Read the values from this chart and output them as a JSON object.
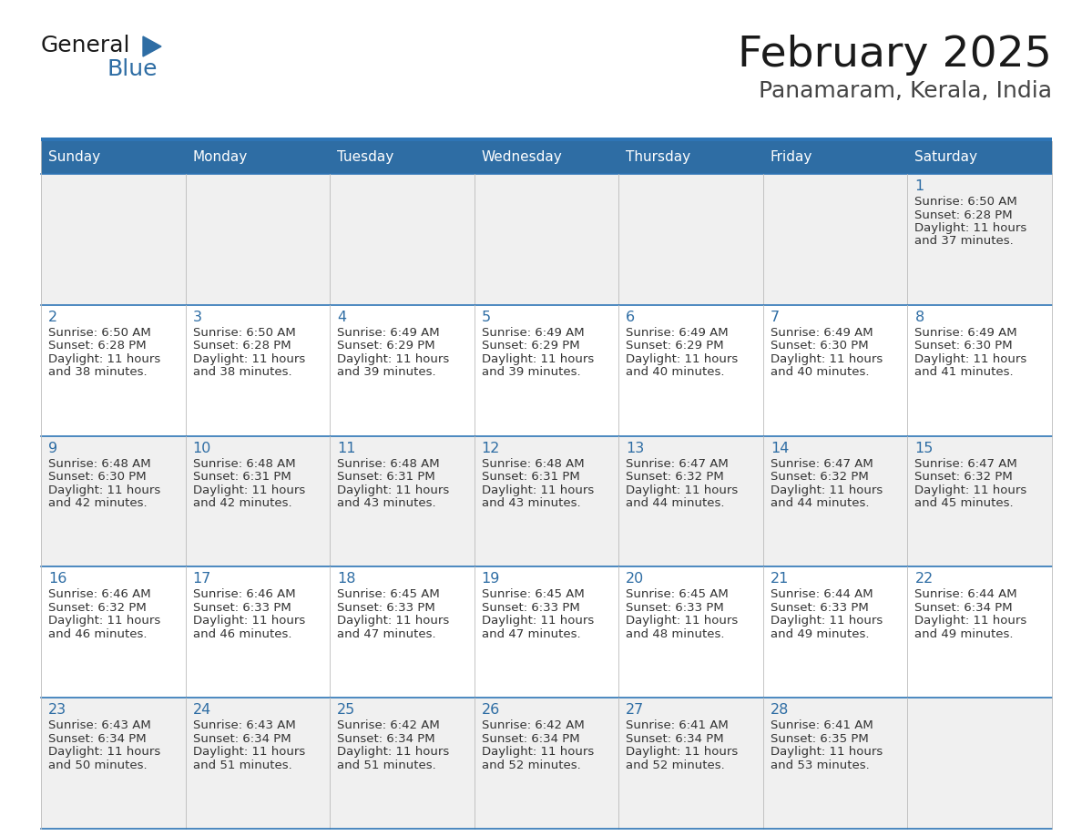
{
  "title": "February 2025",
  "subtitle": "Panamaram, Kerala, India",
  "header_bg": "#2E6DA4",
  "header_text": "#FFFFFF",
  "row_bg_odd": "#F0F0F0",
  "row_bg_even": "#FFFFFF",
  "border_color": "#2E75B6",
  "title_color": "#1a1a1a",
  "subtitle_color": "#444444",
  "day_number_color": "#2E6DA4",
  "cell_text_color": "#333333",
  "logo_text_color": "#1a1a1a",
  "logo_blue_color": "#2E6DA4",
  "days_of_week": [
    "Sunday",
    "Monday",
    "Tuesday",
    "Wednesday",
    "Thursday",
    "Friday",
    "Saturday"
  ],
  "calendar_data": [
    [
      null,
      null,
      null,
      null,
      null,
      null,
      {
        "day": 1,
        "sunrise": "6:50 AM",
        "sunset": "6:28 PM",
        "daylight": "11 hours",
        "daylight2": "and 37 minutes."
      }
    ],
    [
      {
        "day": 2,
        "sunrise": "6:50 AM",
        "sunset": "6:28 PM",
        "daylight": "11 hours",
        "daylight2": "and 38 minutes."
      },
      {
        "day": 3,
        "sunrise": "6:50 AM",
        "sunset": "6:28 PM",
        "daylight": "11 hours",
        "daylight2": "and 38 minutes."
      },
      {
        "day": 4,
        "sunrise": "6:49 AM",
        "sunset": "6:29 PM",
        "daylight": "11 hours",
        "daylight2": "and 39 minutes."
      },
      {
        "day": 5,
        "sunrise": "6:49 AM",
        "sunset": "6:29 PM",
        "daylight": "11 hours",
        "daylight2": "and 39 minutes."
      },
      {
        "day": 6,
        "sunrise": "6:49 AM",
        "sunset": "6:29 PM",
        "daylight": "11 hours",
        "daylight2": "and 40 minutes."
      },
      {
        "day": 7,
        "sunrise": "6:49 AM",
        "sunset": "6:30 PM",
        "daylight": "11 hours",
        "daylight2": "and 40 minutes."
      },
      {
        "day": 8,
        "sunrise": "6:49 AM",
        "sunset": "6:30 PM",
        "daylight": "11 hours",
        "daylight2": "and 41 minutes."
      }
    ],
    [
      {
        "day": 9,
        "sunrise": "6:48 AM",
        "sunset": "6:30 PM",
        "daylight": "11 hours",
        "daylight2": "and 42 minutes."
      },
      {
        "day": 10,
        "sunrise": "6:48 AM",
        "sunset": "6:31 PM",
        "daylight": "11 hours",
        "daylight2": "and 42 minutes."
      },
      {
        "day": 11,
        "sunrise": "6:48 AM",
        "sunset": "6:31 PM",
        "daylight": "11 hours",
        "daylight2": "and 43 minutes."
      },
      {
        "day": 12,
        "sunrise": "6:48 AM",
        "sunset": "6:31 PM",
        "daylight": "11 hours",
        "daylight2": "and 43 minutes."
      },
      {
        "day": 13,
        "sunrise": "6:47 AM",
        "sunset": "6:32 PM",
        "daylight": "11 hours",
        "daylight2": "and 44 minutes."
      },
      {
        "day": 14,
        "sunrise": "6:47 AM",
        "sunset": "6:32 PM",
        "daylight": "11 hours",
        "daylight2": "and 44 minutes."
      },
      {
        "day": 15,
        "sunrise": "6:47 AM",
        "sunset": "6:32 PM",
        "daylight": "11 hours",
        "daylight2": "and 45 minutes."
      }
    ],
    [
      {
        "day": 16,
        "sunrise": "6:46 AM",
        "sunset": "6:32 PM",
        "daylight": "11 hours",
        "daylight2": "and 46 minutes."
      },
      {
        "day": 17,
        "sunrise": "6:46 AM",
        "sunset": "6:33 PM",
        "daylight": "11 hours",
        "daylight2": "and 46 minutes."
      },
      {
        "day": 18,
        "sunrise": "6:45 AM",
        "sunset": "6:33 PM",
        "daylight": "11 hours",
        "daylight2": "and 47 minutes."
      },
      {
        "day": 19,
        "sunrise": "6:45 AM",
        "sunset": "6:33 PM",
        "daylight": "11 hours",
        "daylight2": "and 47 minutes."
      },
      {
        "day": 20,
        "sunrise": "6:45 AM",
        "sunset": "6:33 PM",
        "daylight": "11 hours",
        "daylight2": "and 48 minutes."
      },
      {
        "day": 21,
        "sunrise": "6:44 AM",
        "sunset": "6:33 PM",
        "daylight": "11 hours",
        "daylight2": "and 49 minutes."
      },
      {
        "day": 22,
        "sunrise": "6:44 AM",
        "sunset": "6:34 PM",
        "daylight": "11 hours",
        "daylight2": "and 49 minutes."
      }
    ],
    [
      {
        "day": 23,
        "sunrise": "6:43 AM",
        "sunset": "6:34 PM",
        "daylight": "11 hours",
        "daylight2": "and 50 minutes."
      },
      {
        "day": 24,
        "sunrise": "6:43 AM",
        "sunset": "6:34 PM",
        "daylight": "11 hours",
        "daylight2": "and 51 minutes."
      },
      {
        "day": 25,
        "sunrise": "6:42 AM",
        "sunset": "6:34 PM",
        "daylight": "11 hours",
        "daylight2": "and 51 minutes."
      },
      {
        "day": 26,
        "sunrise": "6:42 AM",
        "sunset": "6:34 PM",
        "daylight": "11 hours",
        "daylight2": "and 52 minutes."
      },
      {
        "day": 27,
        "sunrise": "6:41 AM",
        "sunset": "6:34 PM",
        "daylight": "11 hours",
        "daylight2": "and 52 minutes."
      },
      {
        "day": 28,
        "sunrise": "6:41 AM",
        "sunset": "6:35 PM",
        "daylight": "11 hours",
        "daylight2": "and 53 minutes."
      },
      null
    ]
  ]
}
